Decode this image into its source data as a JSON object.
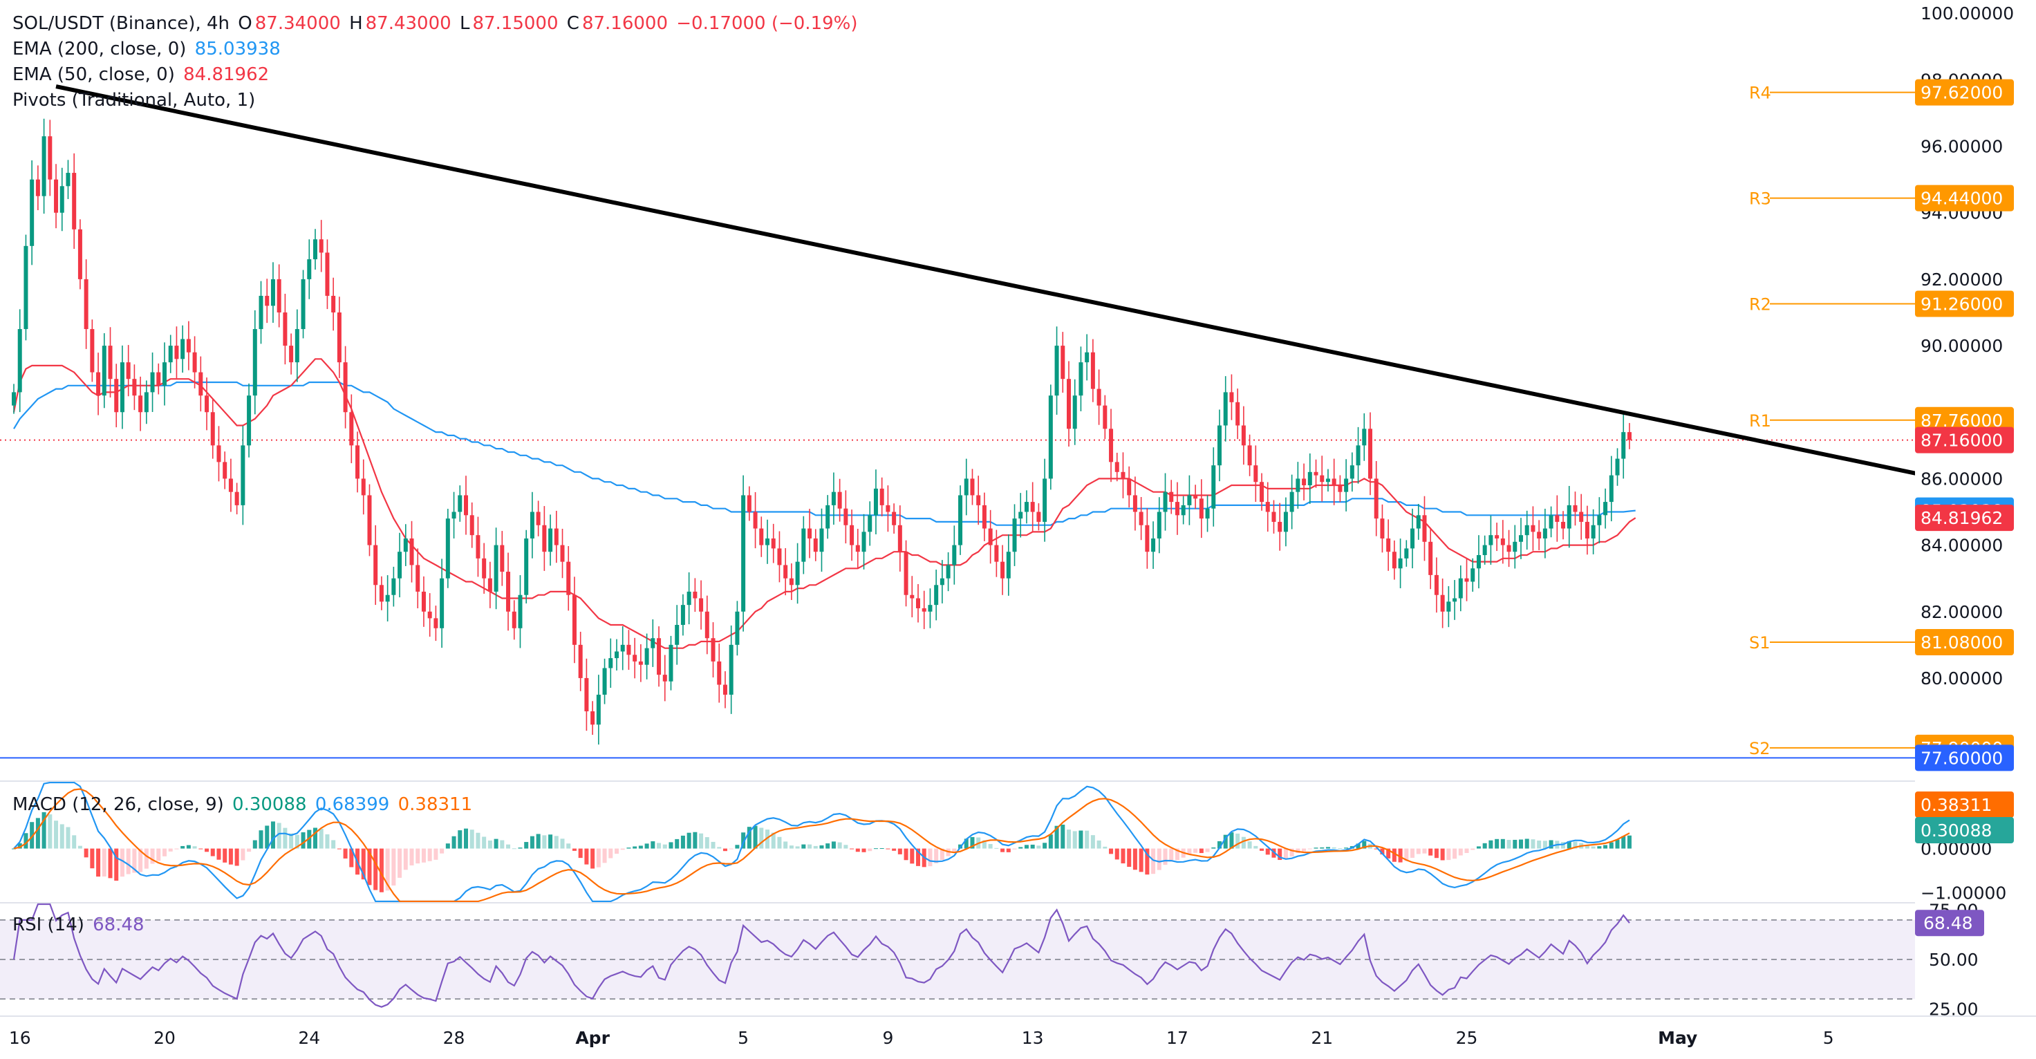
{
  "header": {
    "symbol": "SOL/USDT (Binance), 4h",
    "o_label": "O",
    "o_val": "87.34000",
    "h_label": "H",
    "h_val": "87.43000",
    "l_label": "L",
    "l_val": "87.15000",
    "c_label": "C",
    "c_val": "87.16000",
    "change": "−0.17000 (−0.19%)"
  },
  "indicators": {
    "ema200_label": "EMA (200, close, 0)",
    "ema200_val": "85.03938",
    "ema50_label": "EMA (50, close, 0)",
    "ema50_val": "84.81962",
    "pivots_label": "Pivots (Traditional, Auto, 1)",
    "macd_label": "MACD (12, 26, close, 9)",
    "macd_hist": "0.30088",
    "macd_line": "0.68399",
    "macd_signal": "0.38311",
    "rsi_label": "RSI (14)",
    "rsi_val": "68.48"
  },
  "colors": {
    "up": "#089981",
    "down": "#f23645",
    "ema200": "#2196f3",
    "ema50": "#f23645",
    "pivot": "#ff9800",
    "trendline": "#000000",
    "support_line": "#2962ff",
    "macd_line": "#2196f3",
    "signal_line": "#ff6d00",
    "rsi": "#7e57c2"
  },
  "chart_data": {
    "type": "candlestick",
    "title": "SOL/USDT (Binance), 4h",
    "ylim": [
      76.9,
      100.4
    ],
    "price_ticks": [
      "100.00000",
      "98.00000",
      "96.00000",
      "94.00000",
      "92.00000",
      "90.00000",
      "86.00000",
      "84.00000",
      "82.00000",
      "80.00000"
    ],
    "x_ticks": [
      {
        "label": "16",
        "bar": 1
      },
      {
        "label": "20",
        "bar": 25
      },
      {
        "label": "24",
        "bar": 49
      },
      {
        "label": "28",
        "bar": 73
      },
      {
        "label": "Apr",
        "bar": 96
      },
      {
        "label": "5",
        "bar": 121
      },
      {
        "label": "9",
        "bar": 145
      },
      {
        "label": "13",
        "bar": 169
      },
      {
        "label": "17",
        "bar": 193
      },
      {
        "label": "21",
        "bar": 217
      },
      {
        "label": "25",
        "bar": 241
      },
      {
        "label": "May",
        "bar": 276
      },
      {
        "label": "5",
        "bar": 301
      }
    ],
    "pivots": [
      {
        "name": "R4",
        "value": 97.62,
        "label": "97.62000"
      },
      {
        "name": "R3",
        "value": 94.44,
        "label": "94.44000"
      },
      {
        "name": "R2",
        "value": 91.26,
        "label": "91.26000"
      },
      {
        "name": "R1",
        "value": 87.76,
        "label": "87.76000"
      },
      {
        "name": "S1",
        "value": 81.08,
        "label": "81.08000"
      },
      {
        "name": "S2",
        "value": 77.9,
        "label": "77.90000"
      }
    ],
    "horizontal_line": {
      "value": 77.6,
      "label": "77.60000"
    },
    "last_price": {
      "value": 87.16,
      "label": "87.16000"
    },
    "ema200_last": {
      "value": 85.03938,
      "label": "85.03938"
    },
    "ema50_last": {
      "value": 84.81962,
      "label": "84.81962"
    },
    "trendline": [
      {
        "bar": 7,
        "price": 97.8
      },
      {
        "bar": 317,
        "price": 86.1
      }
    ],
    "closes": [
      88.6,
      90.5,
      93.0,
      95.0,
      94.5,
      96.3,
      95.0,
      94.0,
      94.8,
      95.2,
      93.5,
      92.0,
      90.5,
      89.2,
      88.5,
      90.0,
      89.0,
      88.0,
      89.5,
      89.0,
      88.5,
      88.0,
      88.6,
      89.2,
      88.8,
      89.5,
      90.0,
      89.6,
      90.2,
      89.8,
      89.2,
      88.5,
      88.0,
      87.0,
      86.5,
      86.0,
      85.6,
      85.2,
      87.0,
      88.5,
      90.5,
      91.5,
      91.2,
      92.0,
      91.0,
      90.0,
      89.5,
      90.5,
      92.0,
      92.6,
      93.2,
      92.8,
      91.5,
      91.0,
      89.5,
      88.0,
      87.0,
      86.0,
      85.5,
      84.0,
      82.8,
      82.3,
      82.5,
      83.0,
      83.8,
      84.2,
      83.4,
      82.6,
      82.0,
      81.8,
      81.5,
      83.0,
      84.8,
      85.0,
      85.5,
      84.9,
      84.3,
      83.6,
      83.0,
      82.6,
      84.0,
      83.2,
      82.0,
      81.5,
      82.5,
      84.2,
      85.0,
      84.6,
      83.8,
      84.5,
      84.0,
      83.5,
      82.5,
      81.0,
      80.0,
      79.0,
      78.6,
      79.5,
      80.3,
      80.6,
      80.8,
      81.0,
      80.7,
      80.5,
      80.4,
      80.9,
      81.2,
      80.1,
      79.9,
      81.0,
      81.6,
      82.2,
      82.6,
      82.4,
      82.0,
      81.2,
      80.5,
      79.8,
      79.5,
      81.0,
      82.0,
      85.5,
      85.0,
      84.5,
      84.0,
      84.2,
      83.9,
      83.4,
      83.0,
      82.8,
      83.5,
      84.5,
      84.2,
      83.8,
      84.5,
      85.2,
      85.6,
      85.1,
      84.6,
      84.0,
      83.8,
      84.4,
      84.9,
      85.7,
      85.2,
      85.0,
      84.6,
      83.8,
      82.5,
      82.4,
      82.1,
      82.0,
      82.2,
      82.8,
      83.0,
      83.4,
      84.0,
      85.5,
      86.0,
      85.5,
      85.2,
      84.5,
      84.0,
      83.5,
      83.0,
      83.8,
      84.8,
      85.0,
      85.3,
      85.0,
      84.7,
      86.0,
      88.5,
      90.0,
      89.0,
      87.5,
      88.5,
      89.5,
      89.8,
      88.7,
      88.2,
      87.5,
      86.5,
      86.2,
      86.0,
      85.5,
      85.0,
      84.6,
      83.8,
      84.2,
      85.0,
      85.6,
      85.3,
      84.9,
      85.2,
      85.5,
      85.4,
      84.8,
      85.1,
      86.4,
      87.6,
      88.6,
      88.3,
      87.6,
      87.0,
      86.4,
      85.9,
      85.3,
      85.0,
      84.7,
      84.4,
      85.0,
      85.6,
      86.0,
      85.8,
      86.2,
      86.1,
      85.9,
      86.0,
      85.8,
      85.6,
      86.0,
      86.4,
      87.0,
      87.5,
      86.0,
      84.8,
      84.2,
      83.8,
      83.3,
      83.6,
      83.9,
      84.5,
      84.9,
      84.1,
      83.1,
      82.5,
      82.0,
      82.3,
      82.4,
      83.0,
      82.9,
      83.3,
      83.7,
      84.0,
      84.3,
      84.2,
      84.0,
      83.8,
      84.1,
      84.3,
      84.6,
      84.4,
      84.2,
      84.5,
      84.9,
      84.7,
      84.5,
      85.2,
      85.0,
      84.7,
      84.2,
      84.6,
      84.9,
      85.3,
      86.1,
      86.6,
      87.4,
      87.16
    ],
    "ema50": [
      88.0,
      88.9,
      89.3,
      89.4,
      89.4,
      89.4,
      89.4,
      89.4,
      89.4,
      89.3,
      89.2,
      89.0,
      88.8,
      88.6,
      88.5,
      88.6,
      88.6,
      88.6,
      88.7,
      88.8,
      88.8,
      88.8,
      88.8,
      88.8,
      88.8,
      88.9,
      89.0,
      89.0,
      89.0,
      89.0,
      88.9,
      88.8,
      88.6,
      88.4,
      88.2,
      88.0,
      87.8,
      87.6,
      87.6,
      87.7,
      87.8,
      88.0,
      88.2,
      88.5,
      88.6,
      88.7,
      88.8,
      89.0,
      89.2,
      89.4,
      89.6,
      89.6,
      89.4,
      89.2,
      88.9,
      88.5,
      88.1,
      87.6,
      87.1,
      86.6,
      86.1,
      85.6,
      85.2,
      84.8,
      84.5,
      84.2,
      84.0,
      83.8,
      83.6,
      83.5,
      83.4,
      83.3,
      83.2,
      83.1,
      83.0,
      82.9,
      82.9,
      82.8,
      82.7,
      82.6,
      82.5,
      82.4,
      82.4,
      82.4,
      82.4,
      82.4,
      82.4,
      82.5,
      82.5,
      82.6,
      82.6,
      82.6,
      82.6,
      82.5,
      82.4,
      82.2,
      82.0,
      81.8,
      81.7,
      81.6,
      81.6,
      81.6,
      81.5,
      81.4,
      81.3,
      81.2,
      81.1,
      81.0,
      80.9,
      80.9,
      80.9,
      80.9,
      81.0,
      81.0,
      81.1,
      81.1,
      81.1,
      81.1,
      81.2,
      81.3,
      81.4,
      81.6,
      81.8,
      82.0,
      82.1,
      82.3,
      82.4,
      82.5,
      82.6,
      82.6,
      82.7,
      82.7,
      82.8,
      82.8,
      82.9,
      83.0,
      83.1,
      83.2,
      83.3,
      83.3,
      83.3,
      83.4,
      83.5,
      83.6,
      83.6,
      83.7,
      83.8,
      83.8,
      83.8,
      83.7,
      83.7,
      83.6,
      83.5,
      83.5,
      83.4,
      83.4,
      83.4,
      83.4,
      83.5,
      83.7,
      83.8,
      84.0,
      84.1,
      84.2,
      84.3,
      84.3,
      84.3,
      84.3,
      84.3,
      84.4,
      84.4,
      84.4,
      84.5,
      84.8,
      85.1,
      85.2,
      85.4,
      85.6,
      85.8,
      85.9,
      86.0,
      86.0,
      86.0,
      86.0,
      86.0,
      86.0,
      85.9,
      85.8,
      85.7,
      85.6,
      85.6,
      85.6,
      85.5,
      85.5,
      85.5,
      85.5,
      85.5,
      85.5,
      85.5,
      85.5,
      85.6,
      85.7,
      85.8,
      85.8,
      85.8,
      85.8,
      85.8,
      85.8,
      85.7,
      85.7,
      85.7,
      85.7,
      85.7,
      85.7,
      85.7,
      85.7,
      85.8,
      85.8,
      85.8,
      85.8,
      85.8,
      85.8,
      85.9,
      85.9,
      86.0,
      85.9,
      85.9,
      85.8,
      85.6,
      85.4,
      85.2,
      85.0,
      84.9,
      84.8,
      84.7,
      84.5,
      84.3,
      84.1,
      83.9,
      83.8,
      83.7,
      83.6,
      83.5,
      83.5,
      83.5,
      83.5,
      83.5,
      83.6,
      83.6,
      83.6,
      83.7,
      83.7,
      83.8,
      83.8,
      83.8,
      83.9,
      83.9,
      84.0,
      84.0,
      84.0,
      84.0,
      84.0,
      84.0,
      84.1,
      84.1,
      84.2,
      84.3,
      84.5,
      84.7,
      84.82
    ],
    "ema200": [
      87.5,
      87.8,
      88.0,
      88.2,
      88.4,
      88.5,
      88.6,
      88.7,
      88.7,
      88.8,
      88.8,
      88.8,
      88.8,
      88.8,
      88.8,
      88.8,
      88.8,
      88.8,
      88.8,
      88.8,
      88.8,
      88.8,
      88.8,
      88.8,
      88.8,
      88.8,
      88.8,
      88.9,
      88.9,
      88.9,
      88.9,
      88.9,
      88.9,
      88.9,
      88.9,
      88.9,
      88.9,
      88.9,
      88.8,
      88.8,
      88.8,
      88.8,
      88.8,
      88.8,
      88.8,
      88.8,
      88.8,
      88.8,
      88.8,
      88.9,
      88.9,
      88.9,
      88.9,
      88.9,
      88.9,
      88.8,
      88.8,
      88.7,
      88.6,
      88.6,
      88.5,
      88.4,
      88.3,
      88.1,
      88.0,
      87.9,
      87.8,
      87.7,
      87.6,
      87.5,
      87.4,
      87.4,
      87.3,
      87.3,
      87.2,
      87.2,
      87.1,
      87.1,
      87.0,
      87.0,
      86.9,
      86.9,
      86.8,
      86.8,
      86.7,
      86.7,
      86.6,
      86.6,
      86.5,
      86.5,
      86.4,
      86.4,
      86.3,
      86.2,
      86.2,
      86.1,
      86.0,
      86.0,
      85.9,
      85.9,
      85.8,
      85.8,
      85.7,
      85.7,
      85.6,
      85.6,
      85.5,
      85.5,
      85.4,
      85.4,
      85.4,
      85.3,
      85.3,
      85.3,
      85.2,
      85.2,
      85.1,
      85.1,
      85.1,
      85.0,
      85.0,
      85.0,
      85.0,
      85.0,
      85.0,
      85.0,
      85.0,
      85.0,
      85.0,
      85.0,
      85.0,
      85.0,
      85.0,
      84.9,
      84.9,
      84.9,
      84.9,
      84.9,
      84.9,
      84.9,
      84.9,
      84.9,
      84.9,
      84.9,
      84.9,
      84.9,
      84.9,
      84.9,
      84.8,
      84.8,
      84.8,
      84.8,
      84.8,
      84.7,
      84.7,
      84.7,
      84.7,
      84.7,
      84.7,
      84.7,
      84.7,
      84.7,
      84.7,
      84.6,
      84.6,
      84.6,
      84.6,
      84.6,
      84.6,
      84.6,
      84.6,
      84.6,
      84.6,
      84.7,
      84.7,
      84.8,
      84.8,
      84.9,
      84.9,
      85.0,
      85.0,
      85.0,
      85.1,
      85.1,
      85.1,
      85.1,
      85.1,
      85.1,
      85.1,
      85.1,
      85.1,
      85.1,
      85.1,
      85.1,
      85.1,
      85.1,
      85.1,
      85.1,
      85.1,
      85.2,
      85.2,
      85.2,
      85.2,
      85.2,
      85.2,
      85.2,
      85.2,
      85.2,
      85.2,
      85.2,
      85.2,
      85.2,
      85.2,
      85.2,
      85.2,
      85.3,
      85.3,
      85.3,
      85.3,
      85.3,
      85.3,
      85.3,
      85.4,
      85.4,
      85.4,
      85.4,
      85.4,
      85.4,
      85.3,
      85.3,
      85.3,
      85.2,
      85.2,
      85.2,
      85.1,
      85.1,
      85.1,
      85.0,
      85.0,
      85.0,
      85.0,
      84.9,
      84.9,
      84.9,
      84.9,
      84.9,
      84.9,
      84.9,
      84.9,
      84.9,
      84.9,
      84.9,
      84.9,
      84.9,
      84.9,
      84.9,
      84.9,
      84.9,
      84.9,
      84.9,
      84.9,
      84.9,
      84.9,
      84.9,
      85.0,
      85.0,
      85.0,
      85.0,
      85.02,
      85.04
    ]
  },
  "macd": {
    "ylim": [
      -1.2,
      1.5
    ],
    "ticks": [
      "0.00000",
      "−1.00000"
    ],
    "tags": {
      "signal": "0.38311",
      "hist": "0.30088"
    }
  },
  "rsi": {
    "ylim": [
      22,
      78
    ],
    "ticks": [
      "75.00",
      "50.00",
      "25.00"
    ],
    "last": "68.48"
  }
}
